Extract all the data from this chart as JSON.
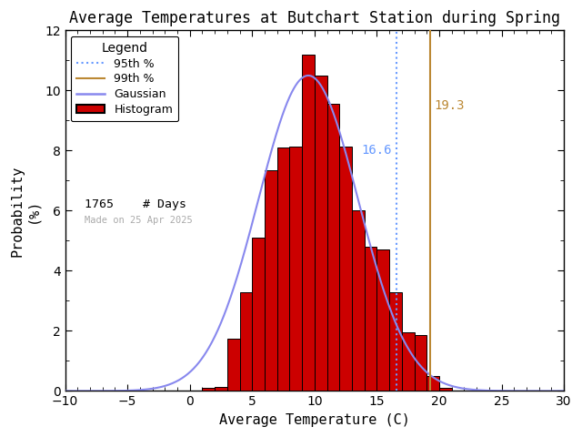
{
  "title": "Average Temperatures at Butchart Station during Spring",
  "xlabel": "Average Temperature (C)",
  "ylabel_line1": "Probability",
  "ylabel_line2": "(%)",
  "xlim": [
    -10,
    30
  ],
  "ylim": [
    0,
    12
  ],
  "xticks": [
    -10,
    -5,
    0,
    5,
    10,
    15,
    20,
    25,
    30
  ],
  "yticks": [
    0,
    2,
    4,
    6,
    8,
    10,
    12
  ],
  "mean": 9.5,
  "std": 4.0,
  "gauss_amplitude": 10.5,
  "n_days": 1765,
  "p95": 16.6,
  "p99": 19.3,
  "bin_edges": [
    1,
    2,
    3,
    4,
    5,
    6,
    7,
    8,
    9,
    10,
    11,
    12,
    13,
    14,
    15,
    16,
    17,
    18,
    19,
    20,
    21
  ],
  "bin_heights": [
    0.1,
    0.15,
    1.75,
    3.3,
    5.1,
    7.35,
    8.1,
    8.15,
    11.2,
    10.5,
    9.55,
    8.15,
    6.0,
    4.8,
    4.7,
    3.3,
    1.95,
    1.85,
    0.5,
    0.1,
    0.0
  ],
  "bar_color": "#cc0000",
  "bar_edgecolor": "#000000",
  "gaussian_color": "#8888ee",
  "p95_color": "#6699ff",
  "p99_color": "#bb8833",
  "bg_color": "#ffffff",
  "date_text": "Made on 25 Apr 2025",
  "date_color": "#aaaaaa",
  "legend_title": "Legend",
  "title_fontsize": 12,
  "axis_fontsize": 11,
  "tick_fontsize": 10
}
